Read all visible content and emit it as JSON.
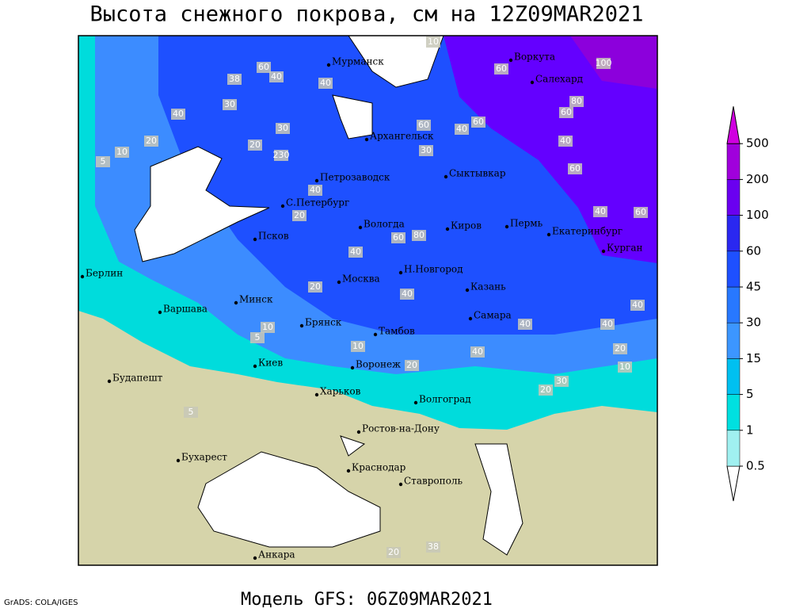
{
  "title": "Высота снежного покрова, см на 12Z09MAR2021",
  "footer": "Модель GFS: 06Z09MAR2021",
  "credit": "GrADS: COLA/IGES",
  "cities": [
    "Мурманск",
    "Воркута",
    "Салехард",
    "Архангельск",
    "Петрозаводск",
    "Сыктывкар",
    "С.Петербург",
    "Вологда",
    "Киров",
    "Пермь",
    "Екатеринбург",
    "Курган",
    "Псков",
    "Москва",
    "Н.Новгород",
    "Казань",
    "Берлин",
    "Минск",
    "Варшава",
    "Брянск",
    "Тамбов",
    "Самара",
    "Киев",
    "Воронеж",
    "Будапешт",
    "Харьков",
    "Волгоград",
    "Ростов-на-Дону",
    "Бухарест",
    "Краснодар",
    "Ставрополь",
    "Анкара"
  ],
  "contour_labels": [
    10,
    60,
    40,
    38,
    40,
    30,
    40,
    20,
    10,
    5,
    30,
    20,
    230,
    40,
    20,
    40,
    20,
    10,
    5,
    40,
    40,
    40,
    20,
    30,
    10,
    20,
    5,
    100,
    60,
    80,
    60,
    40,
    60,
    40,
    60,
    40,
    40,
    60,
    40,
    60,
    30,
    60,
    80,
    20,
    38,
    10,
    20
  ],
  "legend": {
    "levels": [
      0.5,
      1,
      5,
      15,
      30,
      45,
      60,
      100,
      200,
      500
    ],
    "colors": [
      "#ffffff",
      "#a0f0f0",
      "#00e0e0",
      "#00c0f0",
      "#3c96ff",
      "#2878ff",
      "#1e50ff",
      "#2a28f0",
      "#6a00f0",
      "#a000dc",
      "#d000e0"
    ]
  }
}
